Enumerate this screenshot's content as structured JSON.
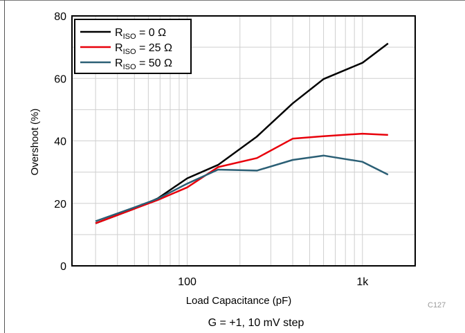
{
  "chart_data": {
    "type": "line",
    "title": "",
    "xlabel": "Load Capacitance (pF)",
    "ylabel": "Overshoot (%)",
    "x_scale": "log",
    "xlim": [
      22,
      2000
    ],
    "ylim": [
      0,
      80
    ],
    "x_ticks": [
      {
        "value": 100,
        "label": "100"
      },
      {
        "value": 1000,
        "label": "1k"
      }
    ],
    "y_ticks": [
      0,
      20,
      40,
      60,
      80
    ],
    "grid": true,
    "legend_position": "top-left",
    "series": [
      {
        "name_main": "R",
        "name_sub": "ISO",
        "name_rest": " = 0 Ω",
        "color": "#000000",
        "x": [
          30,
          50,
          68,
          100,
          150,
          250,
          400,
          600,
          1000,
          1400
        ],
        "y": [
          13.6,
          18.3,
          21.6,
          28.0,
          32.3,
          41.4,
          52.0,
          59.8,
          65.0,
          71.2
        ]
      },
      {
        "name_main": "R",
        "name_sub": "ISO",
        "name_rest": " = 25 Ω",
        "color": "#e8000b",
        "x": [
          30,
          50,
          68,
          100,
          150,
          250,
          400,
          600,
          1000,
          1400
        ],
        "y": [
          13.6,
          18.3,
          21.1,
          25.1,
          31.6,
          34.5,
          40.7,
          41.5,
          42.3,
          41.9
        ]
      },
      {
        "name_main": "R",
        "name_sub": "ISO",
        "name_rest": " = 50 Ω",
        "color": "#2b5f75",
        "x": [
          30,
          50,
          68,
          100,
          150,
          250,
          400,
          600,
          1000,
          1400
        ],
        "y": [
          14.3,
          18.7,
          21.5,
          26.3,
          30.8,
          30.5,
          33.9,
          35.3,
          33.3,
          29.2
        ]
      }
    ]
  },
  "code_label": "C127",
  "caption": "G = +1, 10 mV step"
}
